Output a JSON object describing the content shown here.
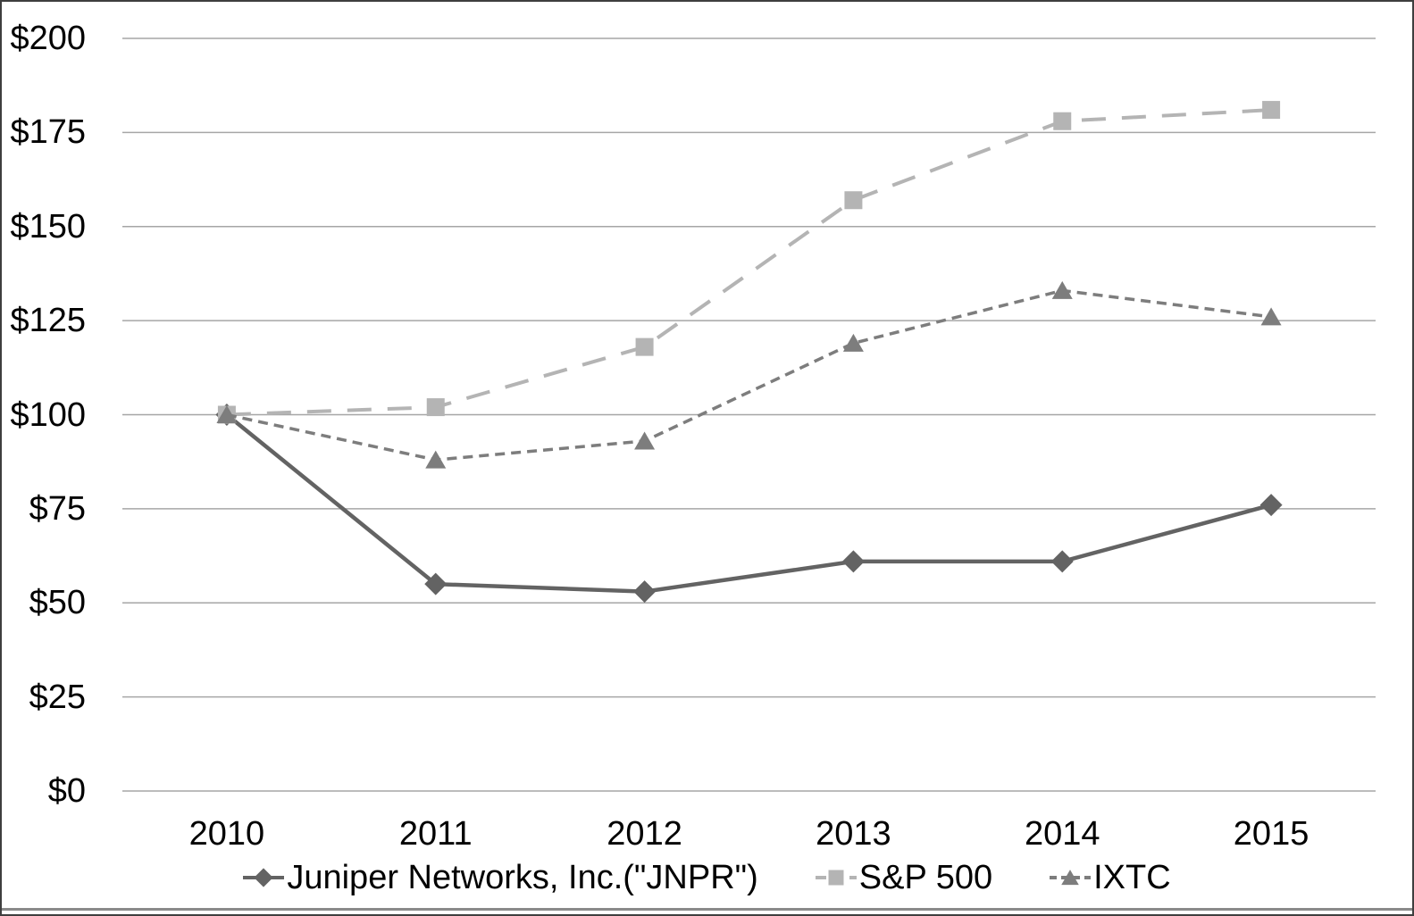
{
  "chart_data": {
    "type": "line",
    "title": "",
    "xlabel": "",
    "ylabel": "",
    "categories": [
      "2010",
      "2011",
      "2012",
      "2013",
      "2014",
      "2015"
    ],
    "series": [
      {
        "name": "Juniper Networks, Inc.(\"JNPR\")",
        "values": [
          100,
          55,
          53,
          61,
          61,
          76
        ],
        "color": "#636363",
        "marker": "diamond",
        "line_style": "solid"
      },
      {
        "name": "S&P 500",
        "values": [
          100,
          102,
          118,
          157,
          178,
          181
        ],
        "color": "#b4b4b4",
        "marker": "square",
        "line_style": "long-dash"
      },
      {
        "name": "IXTC",
        "values": [
          100,
          88,
          93,
          119,
          133,
          126
        ],
        "color": "#7d7d7d",
        "marker": "triangle",
        "line_style": "short-dash"
      }
    ],
    "ylim": [
      0,
      200
    ],
    "ytick_interval": 25,
    "yticks": [
      "$0",
      "$25",
      "$50",
      "$75",
      "$100",
      "$125",
      "$150",
      "$175",
      "$200"
    ],
    "grid": "horizontal",
    "gridline_color": "#a6a6a6",
    "axis_text_color": "#000000",
    "legend_position": "bottom"
  }
}
